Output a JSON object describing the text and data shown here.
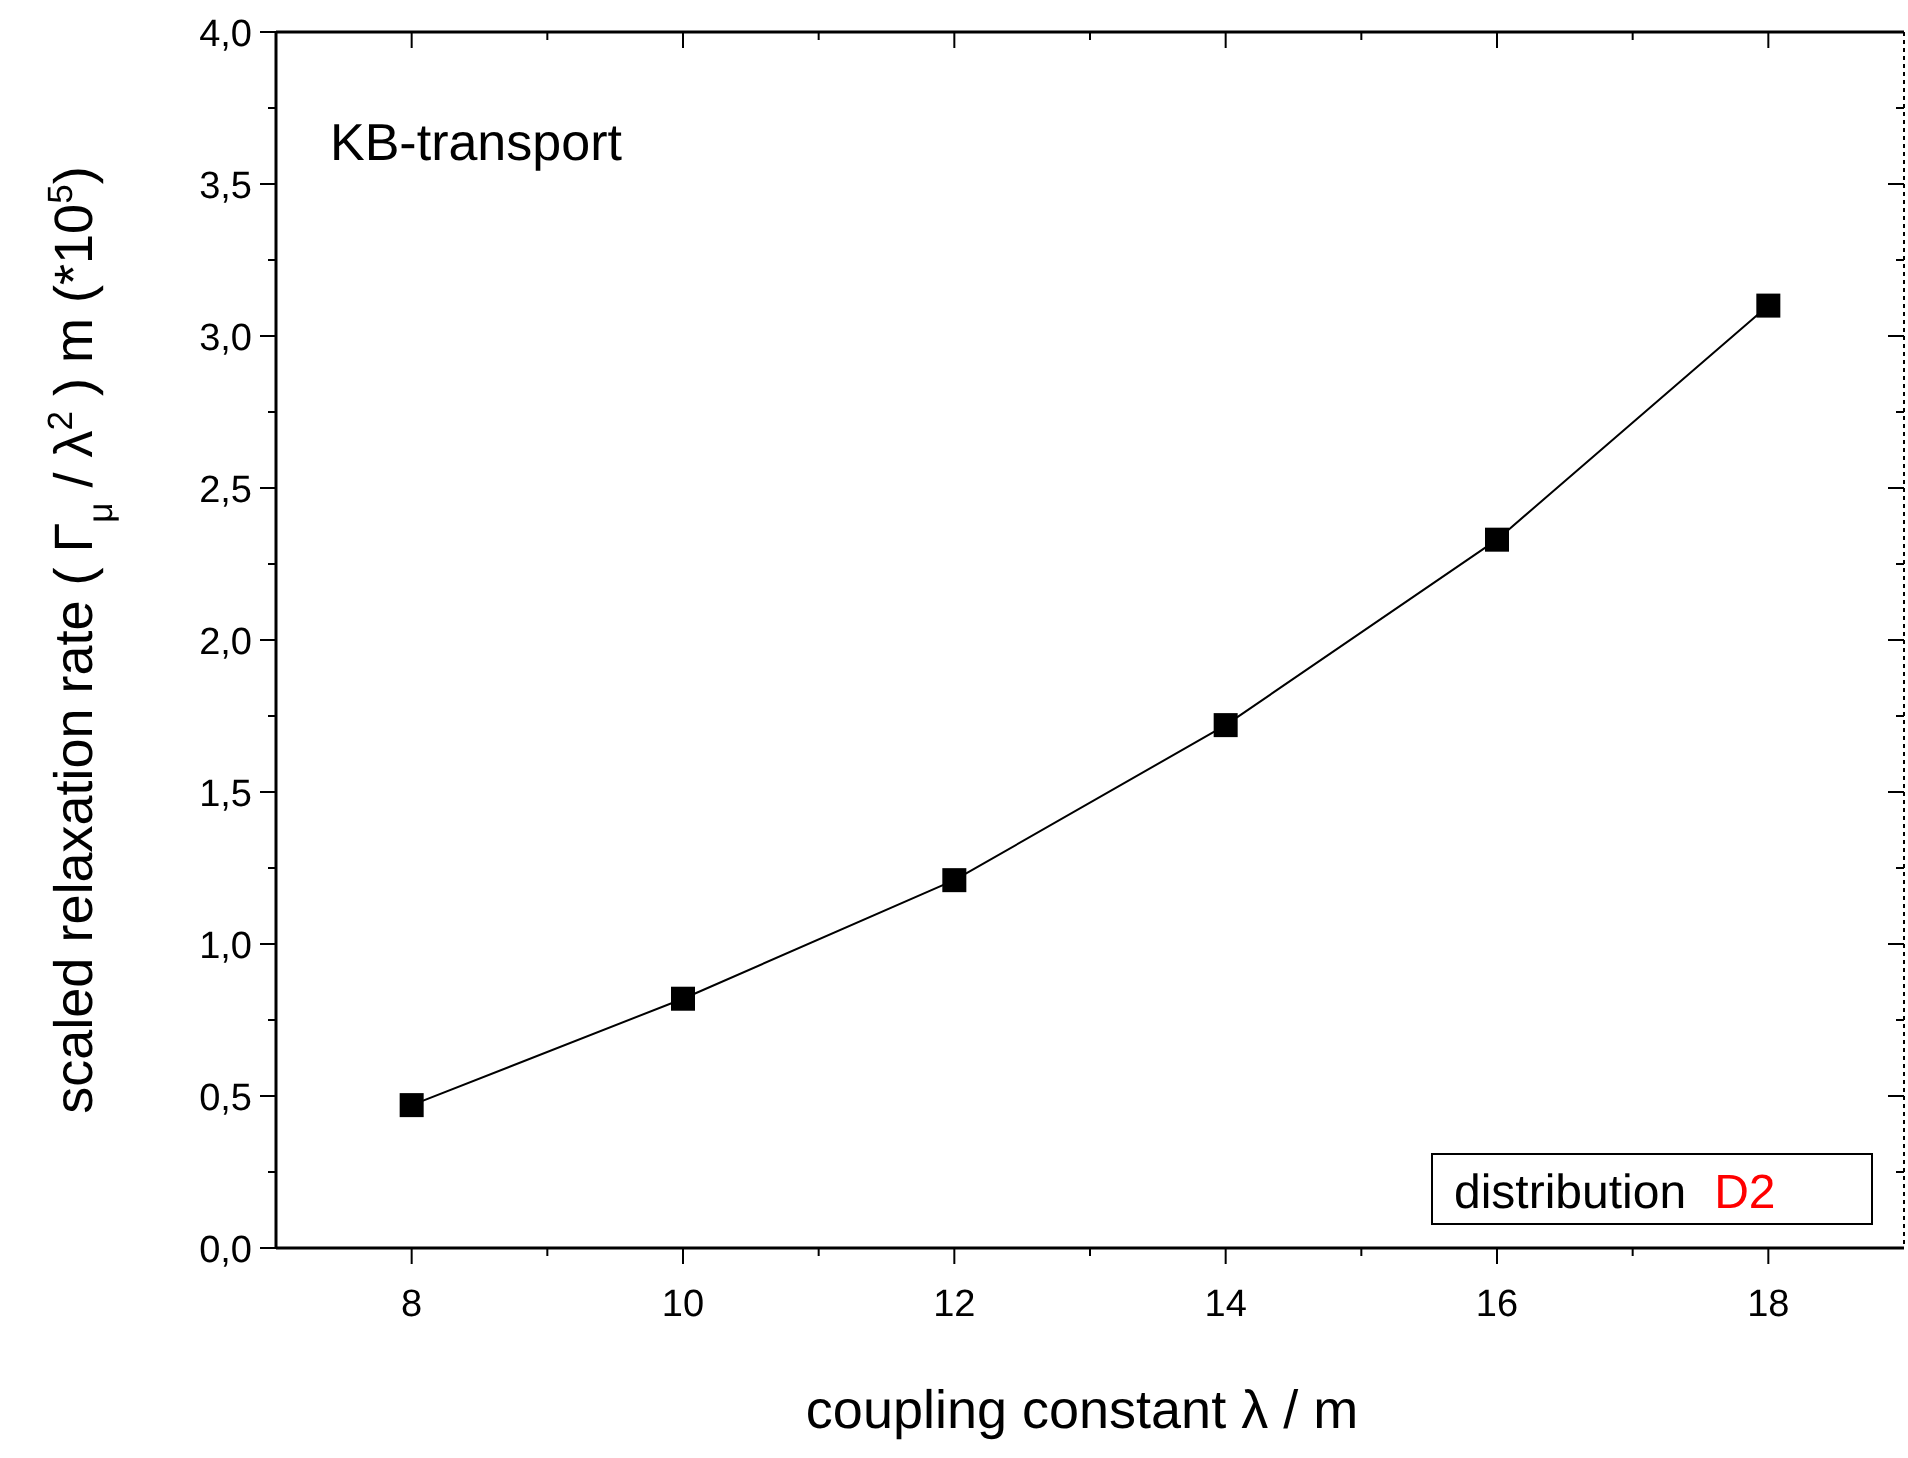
{
  "chart_data": {
    "type": "line",
    "xlabel": "coupling constant  λ / m",
    "ylabel": "scaled relaxation rate   ( Γ$_{μ}$ / λ$^{2}$ )  m    (*10$^{5}$)",
    "x": [
      8,
      10,
      12,
      14,
      16,
      18
    ],
    "series": [
      {
        "color": "#000000",
        "values": [
          0.47,
          0.82,
          1.21,
          1.72,
          2.33,
          3.1
        ]
      }
    ],
    "marker": "square",
    "line_style": "solid",
    "grid": false,
    "xlim": [
      7,
      19
    ],
    "xticks": [
      8,
      10,
      12,
      14,
      16,
      18
    ],
    "ylim": [
      0,
      4
    ],
    "yticks": [
      {
        "value": 0,
        "label": "0,0"
      },
      {
        "value": 0.5,
        "label": "0,5"
      },
      {
        "value": 1,
        "label": "1,0"
      },
      {
        "value": 1.5,
        "label": "1,5"
      },
      {
        "value": 2,
        "label": "2,0"
      },
      {
        "value": 2.5,
        "label": "2,5"
      },
      {
        "value": 3,
        "label": "3,0"
      },
      {
        "value": 3.5,
        "label": "3,5"
      },
      {
        "value": 4,
        "label": "4,0"
      }
    ],
    "annotations": [
      "KB-transport",
      "distribution",
      "D2"
    ]
  }
}
